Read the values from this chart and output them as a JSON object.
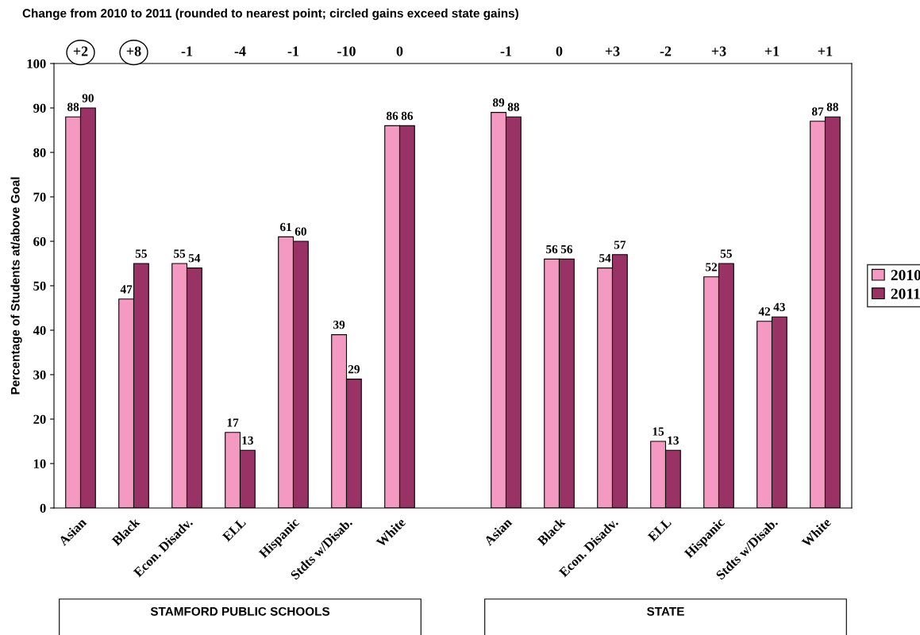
{
  "chart_data": {
    "type": "bar",
    "title": "Change from 2010 to 2011 (rounded to nearest point; circled gains exceed state gains)",
    "ylabel": "Percentage of Students at/above Goal",
    "categories": [
      "Asian",
      "Black",
      "Econ. Disadv.",
      "ELL",
      "Hispanic",
      "Stdts w/Disab.",
      "White",
      null,
      "Asian",
      "Black",
      "Econ. Disadv.",
      "ELL",
      "Hispanic",
      "Stdts w/Disab.",
      "White"
    ],
    "series": [
      {
        "name": "2010",
        "color": "#f49ac2",
        "values": [
          88,
          47,
          55,
          17,
          61,
          39,
          86,
          null,
          89,
          56,
          54,
          15,
          52,
          42,
          87
        ]
      },
      {
        "name": "2011",
        "color": "#993366",
        "values": [
          90,
          55,
          54,
          13,
          60,
          29,
          86,
          null,
          88,
          56,
          57,
          13,
          55,
          43,
          88
        ]
      }
    ],
    "ylim": [
      0,
      100
    ],
    "yticks": [
      0,
      10,
      20,
      30,
      40,
      50,
      60,
      70,
      80,
      90,
      100
    ],
    "data_labels": true,
    "grid": false,
    "legend": "right",
    "annotations": [
      "+2",
      "+8",
      "-1",
      "-4",
      "-1",
      "-10",
      "0",
      "-1",
      "0",
      "+3",
      "-2",
      "+3",
      "+1",
      "+1",
      "STAMFORD PUBLIC SCHOOLS",
      "STATE"
    ]
  }
}
